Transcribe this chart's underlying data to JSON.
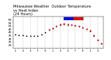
{
  "title": "Milwaukee Weather  Outdoor Temperature\nvs Heat Index\n(24 Hours)",
  "title_fontsize": 3.8,
  "bg_color": "#ffffff",
  "plot_bg_color": "#ffffff",
  "grid_color": "#aaaaaa",
  "ylim": [
    15,
    65
  ],
  "yticks": [
    20,
    25,
    30,
    35,
    40,
    45,
    50,
    55,
    60
  ],
  "ylabel_fontsize": 3.0,
  "xlabel_fontsize": 2.8,
  "temp_x": [
    0,
    1,
    2,
    3,
    4,
    5,
    6,
    7,
    8,
    9,
    10,
    11,
    12,
    13,
    14,
    15,
    16,
    17,
    18,
    19,
    20,
    21,
    22,
    23
  ],
  "temp_y": [
    37,
    36,
    36,
    35,
    34,
    34,
    35,
    37,
    40,
    44,
    47,
    50,
    52,
    53,
    52,
    52,
    51,
    50,
    48,
    45,
    42,
    35,
    28,
    22
  ],
  "heat_x": [
    9,
    10,
    11,
    12,
    13,
    14,
    15,
    16,
    17,
    18,
    19,
    20,
    21,
    22,
    23
  ],
  "heat_y": [
    44,
    47,
    50,
    53,
    54,
    53,
    52,
    51,
    50,
    48,
    45,
    43,
    36,
    28,
    22
  ],
  "dot_size": 2.0,
  "vline_positions": [
    2,
    4,
    6,
    8,
    10,
    12,
    14,
    16,
    18,
    20,
    22
  ],
  "x_tick_positions": [
    0,
    1,
    2,
    3,
    4,
    5,
    6,
    7,
    8,
    9,
    10,
    11,
    12,
    13,
    14,
    15,
    16,
    17,
    18,
    19,
    20,
    21,
    22,
    23
  ],
  "x_tick_labels": [
    "1",
    "",
    "3",
    "",
    "5",
    "",
    "7",
    "",
    "9",
    "",
    "1",
    "",
    "3",
    "",
    "5",
    "",
    "7",
    "",
    "9",
    "",
    "1",
    "",
    "3",
    ""
  ],
  "x_tick2_labels": [
    "A",
    "",
    "M",
    "",
    "M",
    "",
    "M",
    "",
    "M",
    "",
    "P",
    "",
    "P",
    "",
    "P",
    "",
    "P",
    "",
    "A",
    "",
    "A",
    "",
    "A",
    ""
  ]
}
